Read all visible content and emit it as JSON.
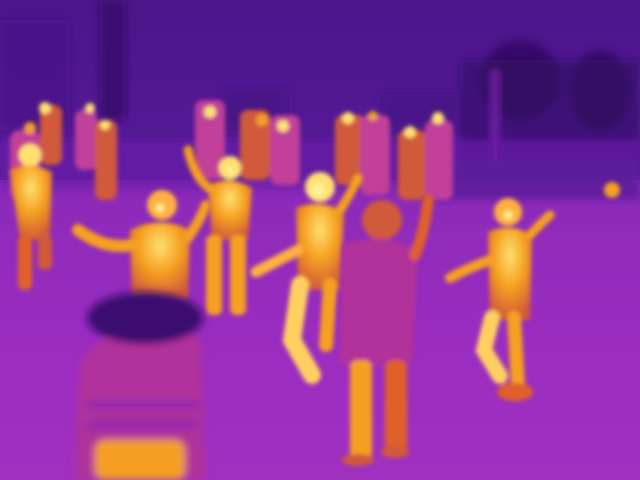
{
  "image": {
    "kind": "thermal-photograph",
    "palette": {
      "cold_dark": "#2a0a55",
      "cold": "#5a1a9a",
      "cool": "#7a20b0",
      "mid": "#b0309a",
      "warm": "#e0602a",
      "hot": "#f5a020",
      "hottest": "#ffe070"
    }
  }
}
